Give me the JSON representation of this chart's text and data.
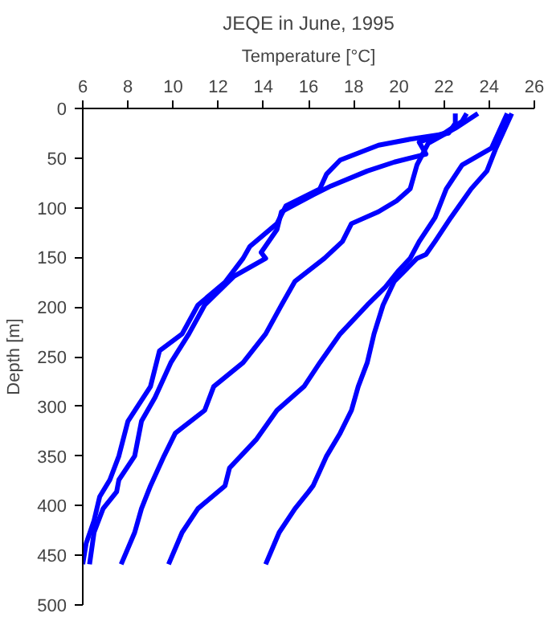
{
  "chart_data": {
    "type": "line",
    "title": "JEQE in June, 1995",
    "xlabel": "Temperature [°C]",
    "ylabel": "Depth [m]",
    "xlim": [
      6,
      26
    ],
    "xticks": [
      6,
      8,
      10,
      12,
      14,
      16,
      18,
      20,
      22,
      24,
      26
    ],
    "ylim": [
      500,
      0
    ],
    "yticks": [
      0,
      50,
      100,
      150,
      200,
      250,
      300,
      350,
      400,
      450,
      500
    ],
    "grid": false,
    "marker": "none",
    "line_style": "solid",
    "series": [
      {
        "color": "#0000ff",
        "x": [
          22.5,
          22.5,
          22.2,
          20.5,
          19.1,
          17.4,
          16.8,
          16.5,
          15.0,
          14.6,
          13.4,
          13.1,
          12.3,
          11.1,
          10.4,
          9.4,
          9.0,
          8.0,
          7.6,
          7.2,
          6.75,
          6.5,
          6.15,
          6.0
        ],
        "values": [
          5,
          15,
          25,
          31,
          37,
          52,
          66,
          81,
          98,
          116,
          139,
          151,
          175,
          198,
          227,
          244,
          280,
          315,
          350,
          374,
          391,
          415,
          438,
          459
        ]
      },
      {
        "color": "#0000ff",
        "x": [
          23.0,
          22.8,
          22.0,
          20.9,
          21.2,
          19.8,
          18.6,
          17.0,
          16.2,
          14.8,
          14.6,
          13.9,
          14.1,
          12.7,
          11.4,
          10.7,
          9.9,
          9.2,
          8.6,
          8.3,
          7.6,
          7.5,
          6.9,
          6.5,
          6.3
        ],
        "values": [
          5,
          13,
          25,
          34,
          46,
          54,
          63,
          78,
          87,
          104,
          122,
          145,
          151,
          169,
          198,
          227,
          256,
          291,
          315,
          350,
          374,
          386,
          403,
          427,
          459
        ]
      },
      {
        "color": "#0000ff",
        "x": [
          23.5,
          22.5,
          21.3,
          20.8,
          20.5,
          19.9,
          19.1,
          17.9,
          17.5,
          16.7,
          15.4,
          14.8,
          14.1,
          13.1,
          11.8,
          11.4,
          10.1,
          9.6,
          9.0,
          8.6,
          8.3,
          7.7
        ],
        "values": [
          5,
          20,
          35,
          57,
          81,
          93,
          104,
          116,
          134,
          151,
          174,
          198,
          227,
          256,
          280,
          304,
          327,
          350,
          380,
          403,
          427,
          459
        ]
      },
      {
        "color": "#0000ff",
        "x": [
          24.8,
          24.5,
          24.1,
          22.8,
          22.1,
          21.6,
          20.9,
          20.5,
          20.0,
          19.4,
          18.6,
          17.4,
          16.5,
          15.8,
          14.6,
          13.7,
          12.5,
          12.3,
          11.1,
          10.4,
          9.8
        ],
        "values": [
          5,
          20,
          40,
          57,
          81,
          110,
          134,
          151,
          163,
          180,
          198,
          227,
          256,
          280,
          304,
          333,
          362,
          380,
          403,
          427,
          459
        ]
      },
      {
        "color": "#0000ff",
        "x": [
          25.0,
          24.7,
          24.3,
          23.9,
          23.2,
          22.3,
          21.6,
          21.2,
          20.8,
          19.8,
          19.3,
          18.9,
          18.6,
          18.2,
          17.9,
          17.4,
          16.8,
          16.2,
          16.0,
          15.4,
          14.7,
          14.1
        ],
        "values": [
          5,
          20,
          40,
          63,
          81,
          110,
          134,
          147,
          151,
          174,
          198,
          227,
          256,
          280,
          304,
          327,
          350,
          380,
          386,
          403,
          427,
          459
        ]
      }
    ]
  }
}
